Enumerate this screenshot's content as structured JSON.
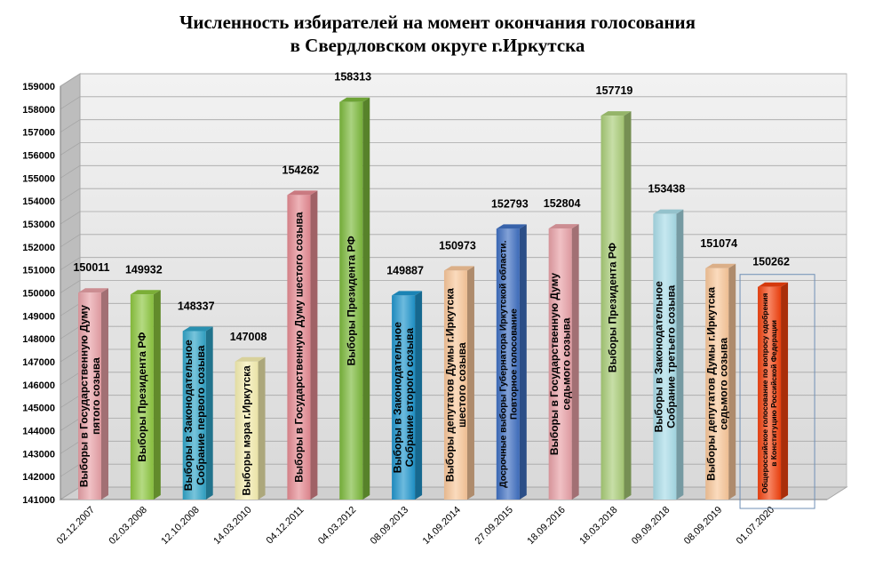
{
  "chart_data": {
    "type": "bar",
    "title_lines": [
      "Численность избирателей на момент  окончания голосования",
      "в Свердловском округе г.Иркутска"
    ],
    "xlabel": "",
    "ylabel": "",
    "ylim": [
      141000,
      159000
    ],
    "yticks": [
      141000,
      142000,
      143000,
      144000,
      145000,
      146000,
      147000,
      148000,
      149000,
      150000,
      151000,
      152000,
      153000,
      154000,
      155000,
      156000,
      157000,
      158000,
      159000
    ],
    "grid": true,
    "legend": "none",
    "categories": [
      "02.12.2007",
      "02.03.2008",
      "12.10.2008",
      "14.03.2010",
      "04.12.2011",
      "04.03.2012",
      "08.09.2013",
      "14.09.2014",
      "27.09.2015",
      "18.09.2016",
      "18.03.2018",
      "09.09.2018",
      "08.09.2019",
      "01.07.2020"
    ],
    "values": [
      150011,
      149932,
      148337,
      147008,
      154262,
      158313,
      149887,
      150973,
      152793,
      152804,
      157719,
      153438,
      151074,
      150262
    ],
    "bar_labels": [
      [
        "Выборы в Государственную  Думу",
        "пятого созыва"
      ],
      [
        "Выборы Президента РФ"
      ],
      [
        "Выборы в Законодательное",
        "Собрание первого созыва"
      ],
      [
        "Выборы мэра г.Иркутска"
      ],
      [
        "Выборы в Государственную Думу шестого созыва"
      ],
      [
        "Выборы  Президента РФ"
      ],
      [
        "Выборы в Законодательное",
        "Собрание второго созыва"
      ],
      [
        "Выборы депутатов Думы г.Иркутска",
        "шестого созыва"
      ],
      [
        "Досрочные  выборы  Губернатора  Иркутской  области.",
        "Повторное  голосование"
      ],
      [
        "Выборы в Государственную  Думу",
        "седьмого созыва"
      ],
      [
        "Выборы Президента РФ"
      ],
      [
        "Выборы в Законодательное",
        "Собрание  третьего созыва"
      ],
      [
        "Выборы депутатов  Думы г.Иркутска",
        "седьмого созыва"
      ],
      [
        "Общероссийское голосование  по  вопросу одобрения",
        "в Конституцию Российской Федерации"
      ]
    ],
    "colors": [
      "#e8a0a6",
      "#8cc63e",
      "#2fa4c8",
      "#f5eeb0",
      "#e58a92",
      "#7cb93c",
      "#1f95cc",
      "#f9c79a",
      "#3e6fc1",
      "#e8a0a6",
      "#a9cc77",
      "#a8dce8",
      "#f9c79a",
      "#f2410e"
    ]
  }
}
